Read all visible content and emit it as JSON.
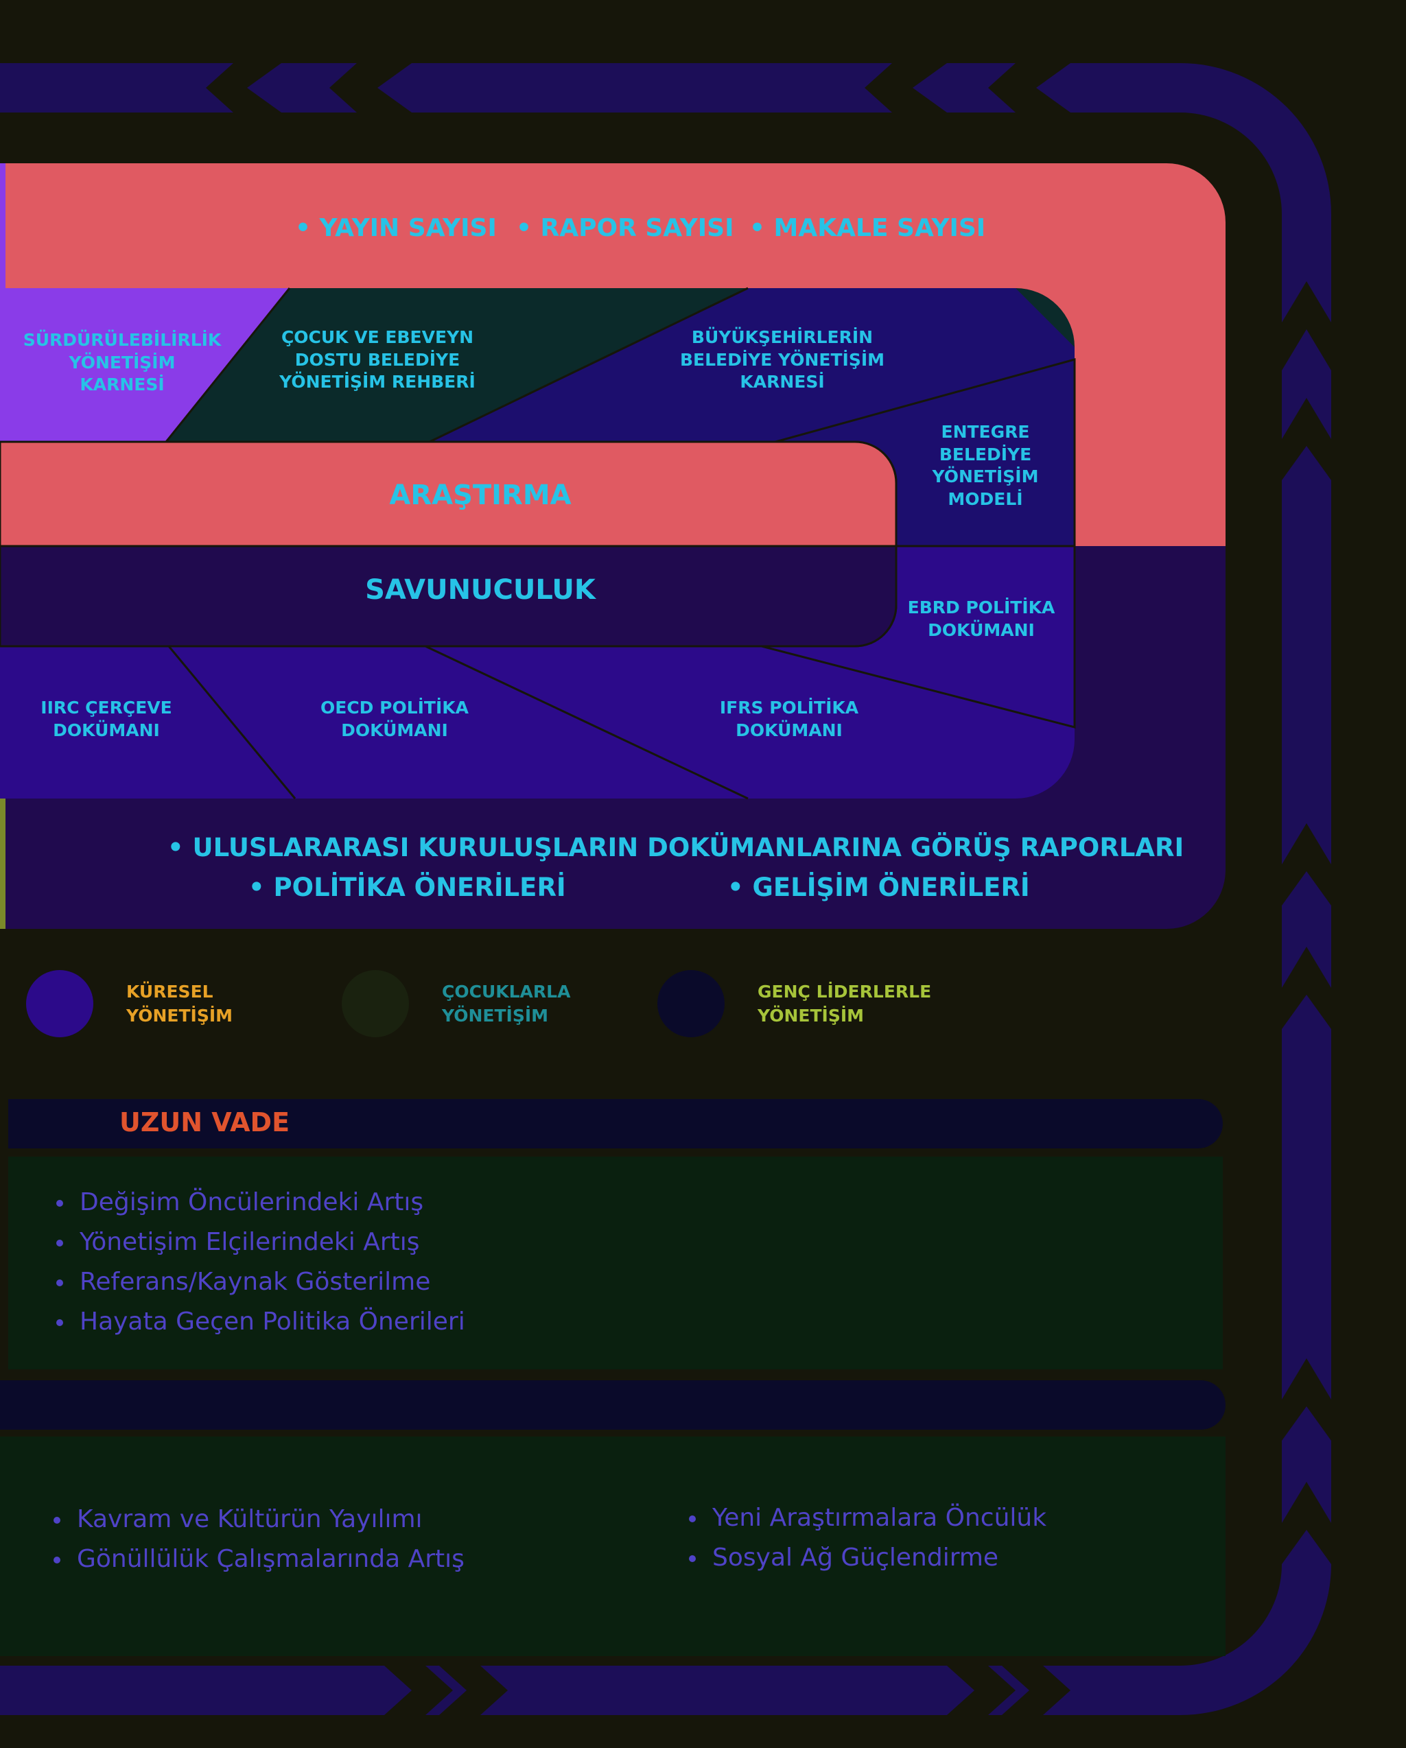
{
  "colors": {
    "background": "#16160a",
    "coral": "#e05a62",
    "violet": "#8a3ce8",
    "dark_teal": "#0b2a2a",
    "navy": "#1c0e6e",
    "indigo": "#2c0a8a",
    "deep_purple": "#200a4e",
    "cyan_text": "#27c3e6",
    "orange": "#e1542e",
    "teal_label": "#1f8f98",
    "lime_label": "#a7c43a",
    "gold_label": "#e7a126"
  },
  "metrics": {
    "items": [
      {
        "label": "YAYIN SAYISI"
      },
      {
        "label": "RAPOR SAYISI"
      },
      {
        "label": "MAKALE SAYISI"
      }
    ]
  },
  "research": {
    "title": "ARAŞTIRMA",
    "cards": [
      {
        "lines": [
          "SÜRDÜRÜLEBİLİRLİK",
          "YÖNETİŞİM",
          "KARNESİ"
        ]
      },
      {
        "lines": [
          "ÇOCUK VE EBEVEYN",
          "DOSTU BELEDİYE",
          "YÖNETİŞİM REHBERİ"
        ]
      },
      {
        "lines": [
          "BÜYÜKŞEHİRLERİN",
          "BELEDİYE YÖNETİŞİM",
          "KARNESİ"
        ]
      },
      {
        "lines": [
          "ENTEGRE",
          "BELEDİYE",
          "YÖNETİŞİM",
          "MODELİ"
        ]
      }
    ]
  },
  "advocacy": {
    "title": "SAVUNUCULUK",
    "cards": [
      {
        "lines": [
          "EBRD POLİTİKA",
          "DOKÜMANI"
        ]
      },
      {
        "lines": [
          "IIRC ÇERÇEVE",
          "DOKÜMANI"
        ]
      },
      {
        "lines": [
          "OECD POLİTİKA",
          "DOKÜMANI"
        ]
      },
      {
        "lines": [
          "IFRS POLİTİKA",
          "DOKÜMANI"
        ]
      }
    ]
  },
  "outputs": {
    "line1": "ULUSLARARASI KURULUŞLARIN DOKÜMANLARINA GÖRÜŞ RAPORLARI",
    "line2_left": "POLİTİKA ÖNERİLERİ",
    "line2_right": "GELİŞİM ÖNERİLERİ"
  },
  "legend": [
    {
      "lines": [
        "KÜRESEL",
        "YÖNETİŞİM"
      ],
      "dot_color": "#2c0a8a",
      "text_color": "#e7a126"
    },
    {
      "lines": [
        "ÇOCUKLARLA",
        "YÖNETİŞİM"
      ],
      "dot_color": "#1a220f",
      "text_color": "#1f8f98"
    },
    {
      "lines": [
        "GENÇ LİDERLERLE",
        "YÖNETİŞİM"
      ],
      "dot_color": "#0a0a2a",
      "text_color": "#a7c43a"
    }
  ],
  "long_term": {
    "title": "UZUN VADE",
    "icon": "people-circle-icon",
    "items": [
      "Değişim Öncülerindeki Artış",
      "Yönetişim Elçilerindeki Artış",
      "Referans/Kaynak Gösterilme",
      "Hayata Geçen Politika Önerileri"
    ]
  },
  "second_section": {
    "left_items": [
      "Kavram ve Kültürün Yayılımı",
      "Gönüllülük Çalışmalarında Artış"
    ],
    "right_items": [
      "Yeni Araştırmalara Öncülük",
      "Sosyal Ağ Güçlendirme"
    ]
  }
}
